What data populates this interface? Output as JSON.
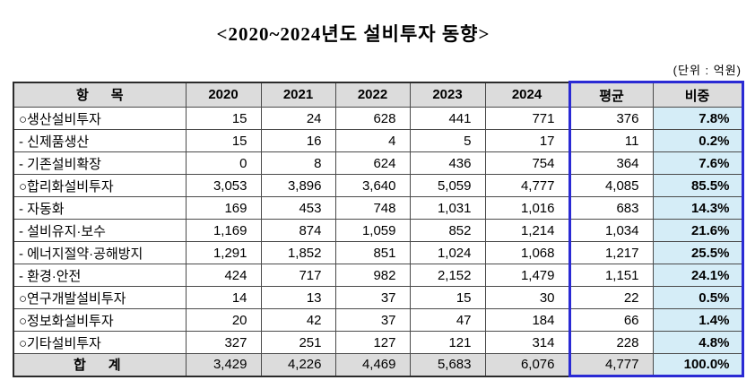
{
  "page": {
    "title": "<2020~2024년도 설비투자 동향>",
    "unit_label": "(단위 : 억원)"
  },
  "table": {
    "columns": [
      "항      목",
      "2020",
      "2021",
      "2022",
      "2023",
      "2024",
      "평균",
      "비중"
    ],
    "rows": [
      {
        "item": "○생산설비투자",
        "values": [
          "15",
          "24",
          "628",
          "441",
          "771",
          "376"
        ],
        "share": "7.8%"
      },
      {
        "item": "- 신제품생산",
        "values": [
          "15",
          "16",
          "4",
          "5",
          "17",
          "11"
        ],
        "share": "0.2%"
      },
      {
        "item": "- 기존설비확장",
        "values": [
          "0",
          "8",
          "624",
          "436",
          "754",
          "364"
        ],
        "share": "7.6%"
      },
      {
        "item": "○합리화설비투자",
        "values": [
          "3,053",
          "3,896",
          "3,640",
          "5,059",
          "4,777",
          "4,085"
        ],
        "share": "85.5%"
      },
      {
        "item": "- 자동화",
        "values": [
          "169",
          "453",
          "748",
          "1,031",
          "1,016",
          "683"
        ],
        "share": "14.3%"
      },
      {
        "item": "- 설비유지·보수",
        "values": [
          "1,169",
          "874",
          "1,059",
          "852",
          "1,214",
          "1,034"
        ],
        "share": "21.6%"
      },
      {
        "item": "- 에너지절약·공해방지",
        "values": [
          "1,291",
          "1,852",
          "851",
          "1,024",
          "1,068",
          "1,217"
        ],
        "share": "25.5%"
      },
      {
        "item": "- 환경·안전",
        "values": [
          "424",
          "717",
          "982",
          "2,152",
          "1,479",
          "1,151"
        ],
        "share": "24.1%"
      },
      {
        "item": "○연구개발설비투자",
        "values": [
          "14",
          "13",
          "37",
          "15",
          "30",
          "22"
        ],
        "share": "0.5%"
      },
      {
        "item": "○정보화설비투자",
        "values": [
          "20",
          "42",
          "37",
          "47",
          "184",
          "66"
        ],
        "share": "1.4%"
      },
      {
        "item": "○기타설비투자",
        "values": [
          "327",
          "251",
          "127",
          "121",
          "314",
          "228"
        ],
        "share": "4.8%"
      }
    ],
    "total_row": {
      "item": "합      계",
      "values": [
        "3,429",
        "4,226",
        "4,469",
        "5,683",
        "6,076",
        "4,777"
      ],
      "share": "100.0%"
    },
    "colors": {
      "header_bg": "#dcdcdc",
      "total_bg": "#dcdcdc",
      "share_bg": "#d5edf7",
      "highlight_border": "#2a2ad4"
    }
  }
}
